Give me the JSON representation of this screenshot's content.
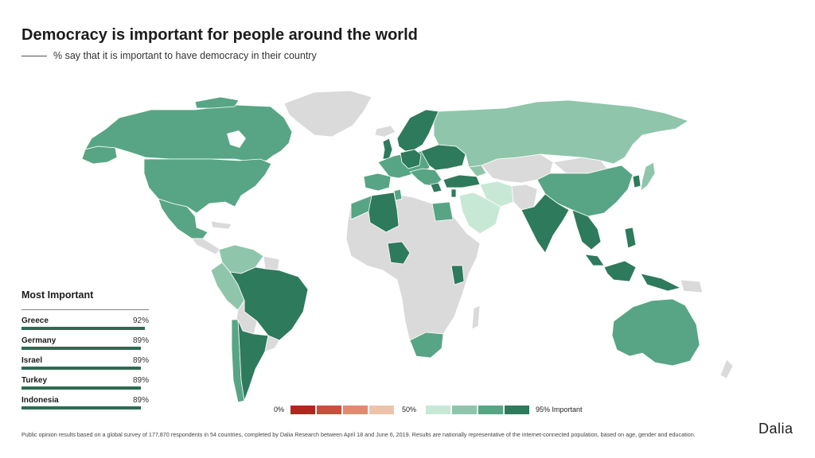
{
  "header": {
    "title": "Democracy is important for people around the world",
    "subtitle": "% say that it is important to have democracy in their country"
  },
  "colors": {
    "no_data": "#dadada",
    "red_1": "#b3261e",
    "red_2": "#c9503c",
    "red_3": "#de8c70",
    "red_4": "#eec3ab",
    "green_1": "#c8e8d6",
    "green_2": "#8fc6ab",
    "green_3": "#57a585",
    "green_4": "#2e7a5c",
    "bar": "#2e6b52"
  },
  "ranking": {
    "title": "Most Important",
    "items": [
      {
        "name": "Greece",
        "value_label": "92%",
        "value": 92
      },
      {
        "name": "Germany",
        "value_label": "89%",
        "value": 89
      },
      {
        "name": "Israel",
        "value_label": "89%",
        "value": 89
      },
      {
        "name": "Turkey",
        "value_label": "89%",
        "value": 89
      },
      {
        "name": "Indonesia",
        "value_label": "89%",
        "value": 89
      }
    ]
  },
  "legend": {
    "min_label": "0%",
    "mid_label": "50%",
    "max_label": "95% Important"
  },
  "footnote": "Public opinion results based on a global survey of 177,870 respondents in 54 countries, completed by Dalia Research between April 18 and June 6, 2019. Results are nationally representative of the internet-connected population, based on age, gender and education.",
  "brand": "Dalia"
}
